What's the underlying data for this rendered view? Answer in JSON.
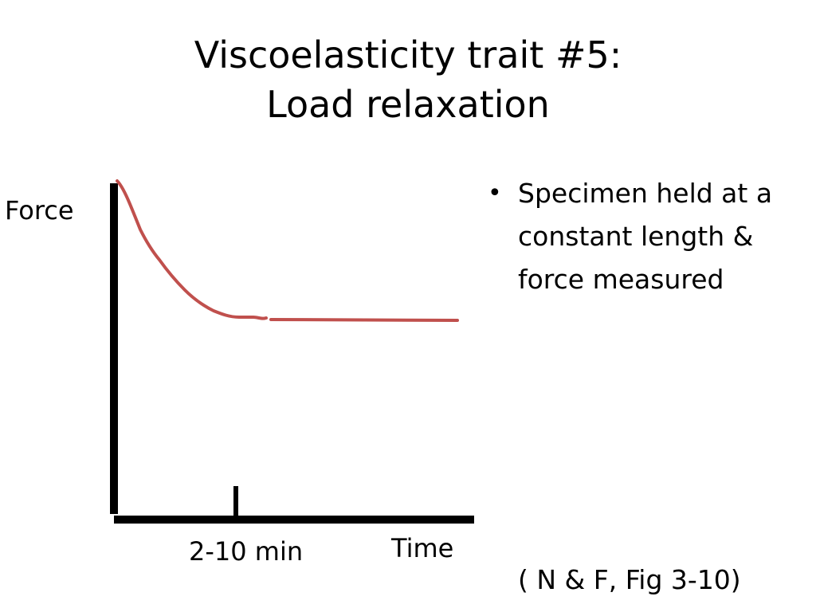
{
  "title": {
    "line1": "Viscoelasticity trait #5:",
    "line2": "Load relaxation"
  },
  "diagram": {
    "y_axis_label": "Force",
    "x_axis_label": "Time",
    "tick_label": "2-10 min",
    "curve_color": "#c0504d",
    "axis_color": "#000000"
  },
  "bullets": [
    {
      "text": "Specimen held at a constant length & force measured"
    }
  ],
  "citation": "( N & F, Fig 3-10)"
}
